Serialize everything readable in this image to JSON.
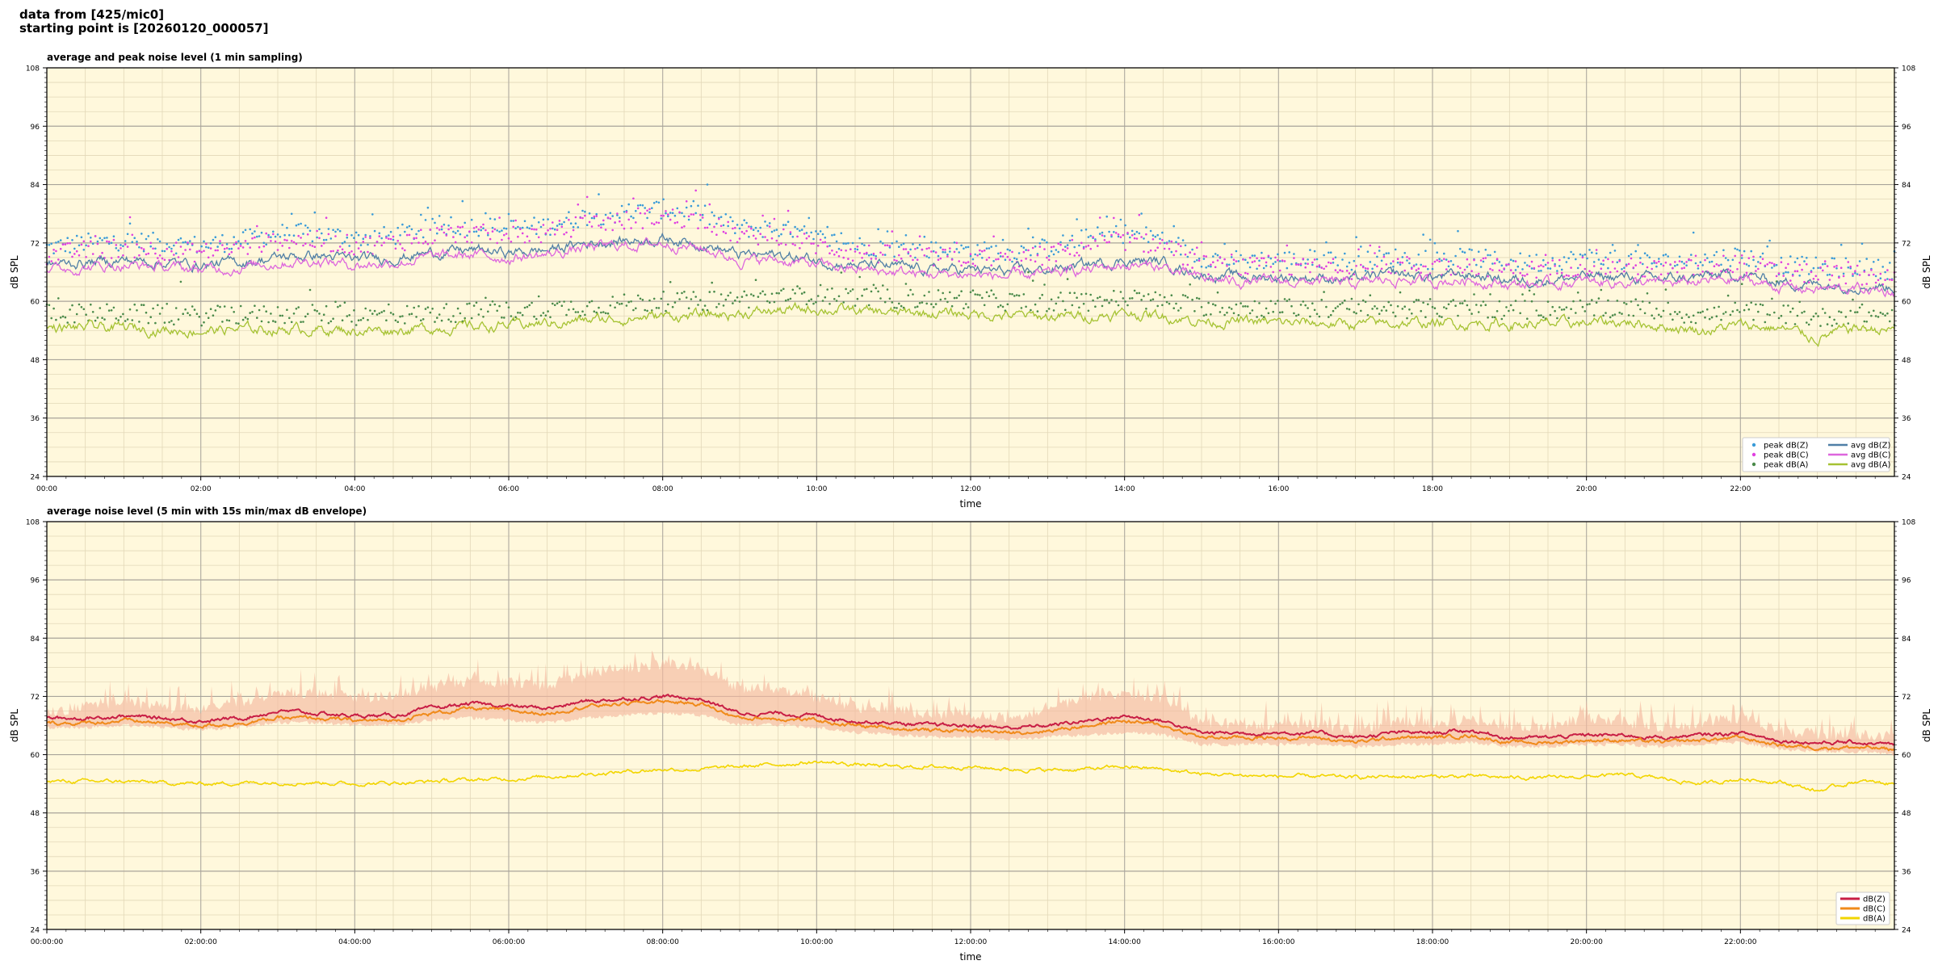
{
  "header": {
    "line1": "data from [425/mic0]",
    "line2": "starting point is [20260120_000057]"
  },
  "colors": {
    "plot_bg": "#fff8dc",
    "zpeak": "#3a9bd8",
    "cpeak": "#e040e0",
    "apeak": "#4a8a4a",
    "zavg": "#4f7fa6",
    "cavg": "#dd66dd",
    "aavg": "#a5c232",
    "z5": "#c81e45",
    "c5": "#f08a1a",
    "a5": "#f2d500",
    "envelope": "#f5b8a0"
  },
  "chart_data": [
    {
      "type": "line",
      "title": "average and peak noise level (1 min sampling)",
      "xlabel": "time",
      "ylabel": "dB SPL",
      "xlim": [
        0,
        24
      ],
      "ylim": [
        24,
        108
      ],
      "yticks": [
        "24",
        "36",
        "48",
        "60",
        "72",
        "84",
        "96",
        "108"
      ],
      "xtick_labels": [
        "00:00",
        "02:00",
        "04:00",
        "06:00",
        "08:00",
        "10:00",
        "12:00",
        "14:00",
        "16:00",
        "18:00",
        "20:00",
        "22:00"
      ],
      "grid": true,
      "legend_position": "bottom-right",
      "x_hours": [
        0,
        0.5,
        1,
        1.5,
        2,
        2.5,
        3,
        3.5,
        4,
        4.5,
        5,
        5.5,
        6,
        6.5,
        7,
        7.5,
        8,
        8.5,
        9,
        9.5,
        10,
        10.5,
        11,
        11.5,
        12,
        12.5,
        13,
        13.5,
        14,
        14.5,
        15,
        15.5,
        16,
        16.5,
        17,
        17.5,
        18,
        18.5,
        19,
        19.5,
        20,
        20.5,
        21,
        21.5,
        22,
        22.5,
        23,
        23.5,
        24
      ],
      "series": [
        {
          "name": "avg dB(Z)",
          "kind": "line",
          "color_key": "zavg",
          "values": [
            67.5,
            68,
            68.5,
            68,
            67.5,
            68,
            69,
            69.5,
            68.5,
            69,
            70,
            70.5,
            70,
            70.5,
            72,
            72.5,
            73,
            72,
            69.5,
            69.5,
            68.5,
            67.5,
            67,
            66.5,
            66.5,
            66,
            66.5,
            67.5,
            68.5,
            68,
            65.5,
            65,
            65,
            65,
            64.5,
            65.5,
            65,
            65.5,
            64.5,
            64.5,
            65,
            65,
            64.5,
            65,
            65.5,
            64,
            63.5,
            63.5,
            63
          ]
        },
        {
          "name": "avg dB(C)",
          "kind": "line",
          "color_key": "cavg",
          "values": [
            66.5,
            67,
            67.5,
            67,
            66.5,
            67,
            68,
            68.5,
            67.5,
            68,
            69,
            69.5,
            69,
            69.5,
            71,
            71.5,
            72,
            71,
            68.5,
            68.5,
            67.5,
            66.5,
            66,
            65.5,
            65.5,
            65,
            65.5,
            66.5,
            67.5,
            67,
            64.5,
            64,
            64,
            64,
            63.5,
            64.5,
            64,
            64.5,
            63.5,
            63.5,
            64,
            64,
            63.5,
            64,
            64.5,
            63,
            62.5,
            62.5,
            62
          ]
        },
        {
          "name": "avg dB(A)",
          "kind": "line",
          "color_key": "aavg",
          "values": [
            54.5,
            54.5,
            54.5,
            54.2,
            54,
            54.2,
            54.3,
            54.3,
            54,
            54.2,
            54.5,
            54.8,
            55,
            55.5,
            56,
            56.5,
            57,
            57,
            57.5,
            58,
            58.5,
            58,
            57.5,
            57.5,
            57.5,
            57,
            56.8,
            57,
            57.5,
            57,
            56,
            55.8,
            55.5,
            55.5,
            55.3,
            55.5,
            55.5,
            55.5,
            55.3,
            55.2,
            55.5,
            55.8,
            55,
            54,
            55,
            54.5,
            52.5,
            54.5,
            54
          ]
        },
        {
          "name": "peak dB(Z)",
          "kind": "points",
          "color_key": "zpeak",
          "values": [
            71,
            72,
            72.5,
            72,
            71.5,
            72.5,
            74,
            74,
            73,
            73.5,
            75,
            75.5,
            75,
            75.5,
            77.5,
            78,
            79,
            78,
            75,
            75,
            73,
            71.5,
            71,
            70.5,
            70.5,
            70,
            71,
            73,
            74,
            73,
            69,
            68.5,
            68.5,
            68.5,
            68,
            69,
            68.5,
            69,
            68,
            68,
            69,
            68.5,
            68,
            68.5,
            69.5,
            67.5,
            67,
            67,
            66.5
          ]
        },
        {
          "name": "peak dB(C)",
          "kind": "points",
          "color_key": "cpeak",
          "values": [
            69.5,
            70.5,
            71,
            70.5,
            70,
            71,
            72.5,
            72.5,
            71.5,
            72,
            73.5,
            74,
            73.5,
            74,
            76,
            76.5,
            77.5,
            76.5,
            73.5,
            73.5,
            71.5,
            70,
            69.5,
            69,
            69,
            68.5,
            69.5,
            71.5,
            72.5,
            71.5,
            67.5,
            67,
            67,
            67,
            66.5,
            67.5,
            67,
            67.5,
            66.5,
            66.5,
            67.5,
            67,
            66.5,
            67,
            68,
            66,
            65.5,
            65.5,
            65
          ]
        },
        {
          "name": "peak dB(A)",
          "kind": "points",
          "color_key": "apeak",
          "values": [
            57.5,
            57.5,
            57.5,
            57.2,
            57,
            57.2,
            57.3,
            57.3,
            57,
            57.2,
            57.5,
            57.8,
            58,
            58.5,
            59,
            59.5,
            60,
            60,
            60.5,
            61,
            61.5,
            61,
            60.5,
            60.5,
            60.5,
            60,
            59.8,
            60,
            60.5,
            60,
            59,
            58.8,
            58.5,
            58.5,
            58.3,
            58.5,
            58.5,
            58.5,
            58.3,
            58.2,
            58.5,
            58.8,
            58,
            57,
            58,
            57.5,
            56.5,
            57.5,
            57
          ]
        }
      ],
      "legend": [
        {
          "label": "peak dB(Z)",
          "color_key": "zpeak",
          "kind": "point"
        },
        {
          "label": "peak dB(C)",
          "color_key": "cpeak",
          "kind": "point"
        },
        {
          "label": "peak dB(A)",
          "color_key": "apeak",
          "kind": "point"
        },
        {
          "label": "avg dB(Z)",
          "color_key": "zavg",
          "kind": "line"
        },
        {
          "label": "avg dB(C)",
          "color_key": "cavg",
          "kind": "line"
        },
        {
          "label": "avg dB(A)",
          "color_key": "aavg",
          "kind": "line"
        }
      ]
    },
    {
      "type": "line",
      "title": "average noise level (5 min with 15s min/max dB envelope)",
      "xlabel": "time",
      "ylabel": "dB SPL",
      "xlim": [
        0,
        24
      ],
      "ylim": [
        24,
        108
      ],
      "yticks": [
        "24",
        "36",
        "48",
        "60",
        "72",
        "84",
        "96",
        "108"
      ],
      "xtick_labels": [
        "00:00:00",
        "02:00:00",
        "04:00:00",
        "06:00:00",
        "08:00:00",
        "10:00:00",
        "12:00:00",
        "14:00:00",
        "16:00:00",
        "18:00:00",
        "20:00:00",
        "22:00:00"
      ],
      "grid": true,
      "legend_position": "bottom-right",
      "x_hours": [
        0,
        0.5,
        1,
        1.5,
        2,
        2.5,
        3,
        3.5,
        4,
        4.5,
        5,
        5.5,
        6,
        6.5,
        7,
        7.5,
        8,
        8.5,
        9,
        9.5,
        10,
        10.5,
        11,
        11.5,
        12,
        12.5,
        13,
        13.5,
        14,
        14.5,
        15,
        15.5,
        16,
        16.5,
        17,
        17.5,
        18,
        18.5,
        19,
        19.5,
        20,
        20.5,
        21,
        21.5,
        22,
        22.5,
        23,
        23.5,
        24
      ],
      "series": [
        {
          "name": "dB(Z)",
          "kind": "line",
          "color_key": "z5",
          "values": [
            67.5,
            67.5,
            68,
            67.5,
            67,
            67.5,
            69,
            68.5,
            68,
            68,
            69.5,
            70.5,
            70,
            69.5,
            71,
            71.5,
            72,
            71.5,
            68.5,
            68.5,
            68,
            67,
            66.5,
            66,
            66,
            65.5,
            66,
            67,
            68,
            67,
            64.5,
            64.5,
            64.5,
            64.5,
            63.5,
            64.5,
            64.5,
            65,
            63.5,
            63.5,
            64,
            64,
            63.5,
            64,
            64.5,
            63,
            62.5,
            62.5,
            62
          ]
        },
        {
          "name": "dB(C)",
          "kind": "line",
          "color_key": "c5",
          "values": [
            66.5,
            66.5,
            67,
            66.5,
            66,
            66.5,
            67.5,
            67.5,
            67,
            67,
            68.5,
            69.5,
            69,
            68.5,
            70,
            70.5,
            71,
            70.5,
            67.5,
            67.5,
            67,
            66,
            65.5,
            65,
            65,
            64.5,
            65,
            66,
            67,
            66,
            63.5,
            63.5,
            63.5,
            63.5,
            62.5,
            63.5,
            63.5,
            64,
            62.5,
            62.5,
            63,
            63,
            62.5,
            63,
            63.5,
            62,
            61.5,
            61.5,
            61
          ]
        },
        {
          "name": "dB(A)",
          "kind": "line",
          "color_key": "a5",
          "values": [
            54.5,
            54.5,
            54.5,
            54.2,
            54,
            54.2,
            54.3,
            54.3,
            54,
            54.2,
            54.5,
            54.8,
            55,
            55.5,
            56,
            56.5,
            57,
            57,
            57.5,
            58,
            58.5,
            58,
            57.5,
            57.5,
            57.5,
            57,
            56.8,
            57,
            57.5,
            57,
            56,
            55.8,
            55.5,
            55.5,
            55.3,
            55.5,
            55.5,
            55.5,
            55.3,
            55.2,
            55.5,
            55.8,
            55,
            54,
            55,
            54.5,
            52.5,
            54.5,
            54
          ]
        },
        {
          "name": "envelope",
          "kind": "band",
          "color_key": "envelope",
          "lower": [
            66,
            66,
            66.5,
            66,
            65.5,
            66,
            67,
            67,
            66.5,
            66.5,
            67.5,
            68,
            67.5,
            67,
            68,
            68.5,
            69,
            68.5,
            66.5,
            66.5,
            66,
            65,
            64.5,
            64,
            64,
            63.5,
            64,
            64.5,
            65,
            64.5,
            62.5,
            62.5,
            62.5,
            62.5,
            62,
            62.5,
            62.5,
            63,
            62,
            62,
            62.5,
            62.5,
            62,
            62.5,
            63,
            61.5,
            61,
            61,
            60.5
          ],
          "upper": [
            70,
            71,
            72,
            71,
            70.5,
            72,
            74,
            74,
            73,
            73.5,
            75,
            76.5,
            76,
            75.5,
            78,
            79,
            80,
            79,
            75,
            75,
            73,
            71,
            70.5,
            69.5,
            69.5,
            69,
            70.5,
            73,
            74,
            73,
            68,
            67.5,
            67.5,
            67.5,
            66.5,
            68,
            67.5,
            68.5,
            67,
            67,
            69,
            68,
            67,
            67.5,
            69,
            66,
            65.5,
            65.5,
            65
          ]
        }
      ],
      "legend": [
        {
          "label": "dB(Z)",
          "color_key": "z5",
          "kind": "line"
        },
        {
          "label": "dB(C)",
          "color_key": "c5",
          "kind": "line"
        },
        {
          "label": "dB(A)",
          "color_key": "a5",
          "kind": "line"
        }
      ]
    }
  ]
}
